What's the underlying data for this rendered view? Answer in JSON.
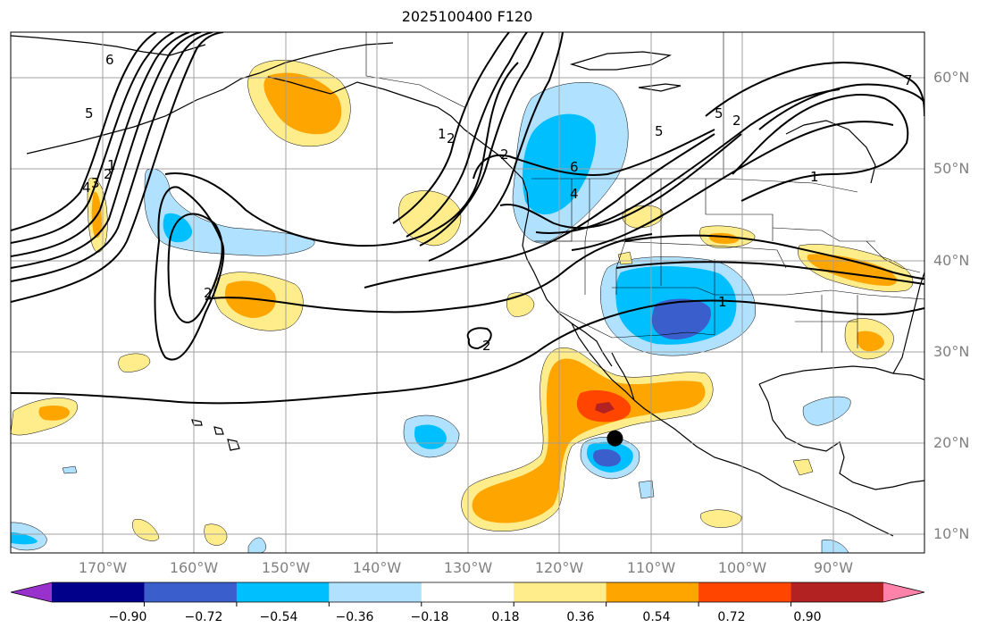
{
  "title": "2025100400 F120",
  "lat_labels": [
    "60°N",
    "50°N",
    "40°N",
    "30°N",
    "20°N",
    "10°N"
  ],
  "lon_labels": [
    "170°W",
    "160°W",
    "150°W",
    "140°W",
    "130°W",
    "120°W",
    "110°W",
    "100°W",
    "90°W"
  ],
  "contour_labels": [
    "6",
    "5",
    "4",
    "3",
    "2",
    "1",
    "2",
    "2",
    "1",
    "5",
    "2",
    "1",
    "4",
    "6",
    "5",
    "1",
    "2",
    "2",
    "7"
  ],
  "colorbar": {
    "tick_labels": [
      "−0.90",
      "−0.72",
      "−0.54",
      "−0.36",
      "−0.18",
      "0.18",
      "0.36",
      "0.54",
      "0.72",
      "0.90"
    ],
    "colors": [
      "#9932cc",
      "#00008b",
      "#3a5fcd",
      "#00bfff",
      "#b0e2ff",
      "#ffffff",
      "#ffec8b",
      "#ffa500",
      "#ff4500",
      "#b22222",
      "#ff82ab"
    ]
  },
  "marker": {
    "lon": -114,
    "lat": 20.5,
    "color": "#000000"
  }
}
